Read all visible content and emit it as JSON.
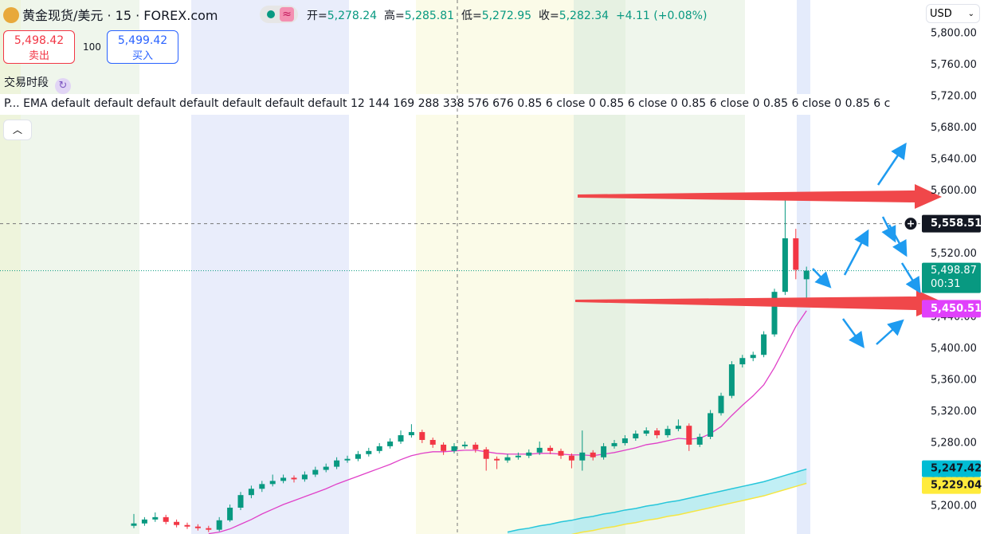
{
  "header": {
    "symbol": "黄金现货/美元 · 15 · FOREX.com",
    "open_label": "开=",
    "open": "5,278.24",
    "high_label": "高=",
    "high": "5,285.81",
    "low_label": "低=",
    "low": "5,272.95",
    "close_label": "收=",
    "close": "5,282.34",
    "change": "+4.11 (+0.08%)",
    "currency": "USD"
  },
  "trade": {
    "sell_price": "5,498.42",
    "sell_label": "卖出",
    "quantity": "100",
    "buy_price": "5,499.42",
    "buy_label": "买入"
  },
  "sessions_label": "交易时段",
  "indicator_legend": "P... EMA default default default default default default default 12 144 169 288 338 576 676 0.85 6 close 0 0.85 6 close 0 0.85 6 close 0 0.85 6 close 0 0.85 6 c",
  "chart_data": {
    "type": "candlestick",
    "up_color": "#089981",
    "down_color": "#f23645",
    "candles": [
      [
        5175,
        5190,
        5172,
        5178
      ],
      [
        5178,
        5186,
        5175,
        5183
      ],
      [
        5183,
        5192,
        5180,
        5186
      ],
      [
        5186,
        5189,
        5177,
        5180
      ],
      [
        5180,
        5183,
        5173,
        5176
      ],
      [
        5176,
        5179,
        5171,
        5174
      ],
      [
        5174,
        5177,
        5169,
        5172
      ],
      [
        5172,
        5175,
        5167,
        5170
      ],
      [
        5170,
        5186,
        5168,
        5182
      ],
      [
        5182,
        5202,
        5180,
        5198
      ],
      [
        5198,
        5218,
        5195,
        5214
      ],
      [
        5214,
        5226,
        5210,
        5222
      ],
      [
        5222,
        5232,
        5218,
        5228
      ],
      [
        5228,
        5240,
        5225,
        5232
      ],
      [
        5232,
        5240,
        5229,
        5236
      ],
      [
        5236,
        5239,
        5230,
        5234
      ],
      [
        5234,
        5244,
        5231,
        5240
      ],
      [
        5240,
        5250,
        5237,
        5246
      ],
      [
        5246,
        5254,
        5243,
        5250
      ],
      [
        5250,
        5262,
        5247,
        5258
      ],
      [
        5258,
        5264,
        5255,
        5260
      ],
      [
        5260,
        5270,
        5257,
        5266
      ],
      [
        5266,
        5274,
        5263,
        5270
      ],
      [
        5270,
        5280,
        5267,
        5276
      ],
      [
        5276,
        5286,
        5273,
        5282
      ],
      [
        5282,
        5296,
        5279,
        5290
      ],
      [
        5290,
        5304,
        5287,
        5294
      ],
      [
        5294,
        5297,
        5280,
        5284
      ],
      [
        5284,
        5287,
        5274,
        5278
      ],
      [
        5278,
        5281,
        5265,
        5270
      ],
      [
        5270,
        5280,
        5267,
        5276
      ],
      [
        5276,
        5282,
        5273,
        5278
      ],
      [
        5278,
        5281,
        5268,
        5272
      ],
      [
        5272,
        5275,
        5245,
        5260
      ],
      [
        5260,
        5263,
        5247,
        5258
      ],
      [
        5258,
        5266,
        5255,
        5262
      ],
      [
        5262,
        5268,
        5259,
        5264
      ],
      [
        5264,
        5272,
        5261,
        5268
      ],
      [
        5268,
        5282,
        5265,
        5274
      ],
      [
        5274,
        5277,
        5266,
        5270
      ],
      [
        5270,
        5273,
        5260,
        5264
      ],
      [
        5264,
        5267,
        5248,
        5258
      ],
      [
        5258,
        5296,
        5245,
        5268
      ],
      [
        5268,
        5271,
        5258,
        5262
      ],
      [
        5262,
        5280,
        5259,
        5276
      ],
      [
        5276,
        5284,
        5273,
        5280
      ],
      [
        5280,
        5290,
        5277,
        5286
      ],
      [
        5286,
        5296,
        5283,
        5292
      ],
      [
        5292,
        5300,
        5289,
        5296
      ],
      [
        5296,
        5299,
        5286,
        5290
      ],
      [
        5290,
        5302,
        5287,
        5298
      ],
      [
        5298,
        5310,
        5295,
        5302
      ],
      [
        5302,
        5305,
        5270,
        5278
      ],
      [
        5278,
        5292,
        5275,
        5288
      ],
      [
        5288,
        5322,
        5285,
        5318
      ],
      [
        5318,
        5344,
        5315,
        5340
      ],
      [
        5340,
        5384,
        5337,
        5380
      ],
      [
        5380,
        5392,
        5376,
        5388
      ],
      [
        5388,
        5396,
        5384,
        5392
      ],
      [
        5392,
        5422,
        5389,
        5418
      ],
      [
        5418,
        5476,
        5415,
        5472
      ],
      [
        5472,
        5597,
        5468,
        5540
      ],
      [
        5540,
        5552,
        5488,
        5500
      ],
      [
        5488,
        5504,
        5455,
        5498.87
      ]
    ],
    "ema": {
      "color": "#e040c8",
      "values": [
        null,
        null,
        null,
        null,
        null,
        null,
        null,
        5165,
        5167,
        5171,
        5177,
        5183,
        5190,
        5196,
        5202,
        5207,
        5212,
        5217,
        5222,
        5228,
        5233,
        5238,
        5243,
        5248,
        5253,
        5259,
        5264,
        5267,
        5269,
        5269,
        5270,
        5271,
        5271,
        5269,
        5267,
        5266,
        5266,
        5266,
        5267,
        5267,
        5266,
        5265,
        5265,
        5264,
        5266,
        5268,
        5271,
        5274,
        5278,
        5280,
        5283,
        5286,
        5285,
        5286,
        5292,
        5301,
        5315,
        5328,
        5340,
        5354,
        5376,
        5402,
        5428,
        5448
      ]
    },
    "band_upper": {
      "color": "#26c6da",
      "values": [
        null,
        null,
        null,
        null,
        null,
        null,
        null,
        null,
        null,
        null,
        null,
        null,
        null,
        null,
        null,
        null,
        null,
        null,
        null,
        null,
        null,
        null,
        null,
        null,
        null,
        null,
        null,
        null,
        null,
        null,
        null,
        null,
        null,
        null,
        null,
        5167,
        5170,
        5172,
        5175,
        5177,
        5180,
        5182,
        5185,
        5187,
        5190,
        5192,
        5195,
        5197,
        5200,
        5202,
        5205,
        5207,
        5210,
        5213,
        5216,
        5219,
        5222,
        5225,
        5228,
        5231,
        5235,
        5239,
        5243,
        5247
      ]
    },
    "band_lower": {
      "color": "#f5e642",
      "values": [
        null,
        null,
        null,
        null,
        null,
        null,
        null,
        null,
        null,
        null,
        null,
        null,
        null,
        null,
        null,
        null,
        null,
        null,
        null,
        null,
        null,
        null,
        null,
        null,
        null,
        null,
        null,
        null,
        null,
        null,
        null,
        null,
        null,
        null,
        null,
        5149,
        5152,
        5154,
        5157,
        5159,
        5162,
        5164,
        5167,
        5169,
        5172,
        5174,
        5177,
        5179,
        5182,
        5184,
        5187,
        5189,
        5192,
        5195,
        5198,
        5201,
        5204,
        5207,
        5210,
        5213,
        5217,
        5221,
        5225,
        5229
      ]
    },
    "band_fill": "#b2ebf2",
    "ylim": [
      5164.6,
      5842.5
    ],
    "yticks": [
      {
        "value": 5800,
        "label": "5,800.00"
      },
      {
        "value": 5760,
        "label": "5,760.00"
      },
      {
        "value": 5720,
        "label": "5,720.00"
      },
      {
        "value": 5680,
        "label": "5,680.00"
      },
      {
        "value": 5640,
        "label": "5,640.00"
      },
      {
        "value": 5600,
        "label": "5,600.00"
      },
      {
        "value": 5560,
        "label": "5,560.00"
      },
      {
        "value": 5520,
        "label": "5,520.00"
      },
      {
        "value": 5480,
        "label": "5,480.00"
      },
      {
        "value": 5440,
        "label": "5,440.00"
      },
      {
        "value": 5400,
        "label": "5,400.00"
      },
      {
        "value": 5360,
        "label": "5,360.00"
      },
      {
        "value": 5320,
        "label": "5,320.00"
      },
      {
        "value": 5280,
        "label": "5,280.00"
      },
      {
        "value": 5240,
        "label": "5,240.00"
      },
      {
        "value": 5200,
        "label": "5,200.00"
      }
    ],
    "markers": {
      "crosshair": {
        "value": 5558.51,
        "label": "5,558.51",
        "color": "#131722"
      },
      "last_price": {
        "value": 5498.87,
        "label": "5,498.87",
        "countdown": "00:31",
        "color": "#089981"
      },
      "level": {
        "value": 5450.51,
        "label": "5,450.51",
        "color": "#e040fb"
      },
      "band_upper_last": {
        "value": 5247.42,
        "label": "5,247.42",
        "color": "#00bcd4"
      },
      "band_lower_last": {
        "value": 5229.04,
        "label": "5,229.04",
        "color": "#ffeb3b"
      }
    }
  }
}
